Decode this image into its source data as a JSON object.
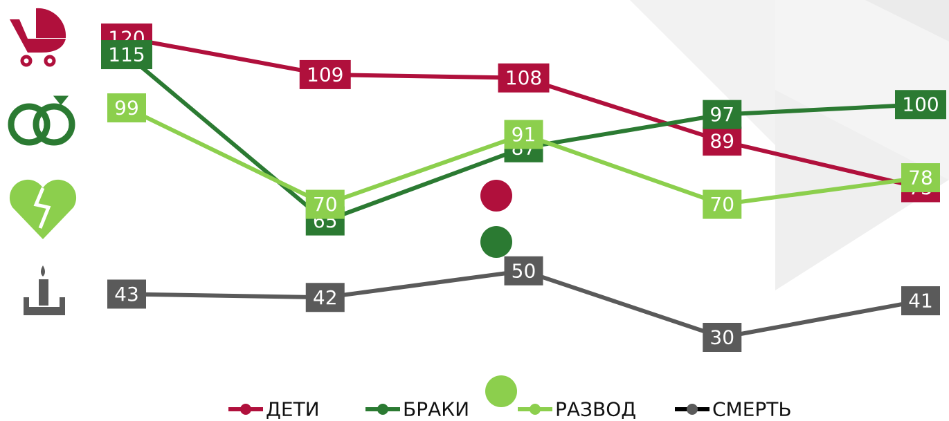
{
  "chart_data": {
    "type": "line",
    "categories": [
      null,
      null,
      null,
      null,
      null
    ],
    "series": [
      {
        "name": "ДЕТИ",
        "color": "#b0103c",
        "values": [
          120,
          109,
          108,
          89,
          75
        ]
      },
      {
        "name": "БРАКИ",
        "color": "#2b7a32",
        "values": [
          115,
          65,
          87,
          97,
          100
        ]
      },
      {
        "name": "РАЗВОД",
        "color": "#8ccf4d",
        "values": [
          99,
          70,
          91,
          70,
          78
        ]
      },
      {
        "name": "СМЕРТЬ",
        "color": "#5a5a5a",
        "values": [
          43,
          42,
          50,
          30,
          41
        ]
      }
    ],
    "legend": "bottom"
  }
}
